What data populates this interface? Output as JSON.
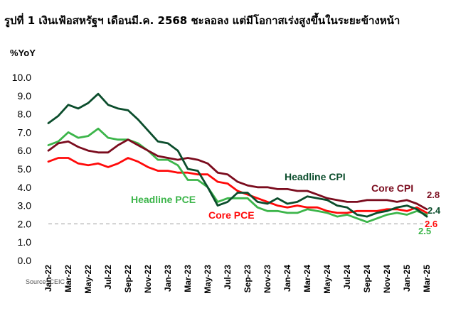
{
  "chart_data": {
    "type": "line",
    "title": "รูปที่ 1 เงินเฟ้อสหรัฐฯ เดือนมี.ค. 2568 ชะลอลง แต่มีโอกาสเร่งสูงขึ้นในระยะข้างหน้า",
    "ylabel": "%YoY",
    "source": "Source: CEIC",
    "ylim": [
      0,
      10
    ],
    "yticks": [
      "0.0",
      "1.0",
      "2.0",
      "3.0",
      "4.0",
      "5.0",
      "6.0",
      "7.0",
      "8.0",
      "9.0",
      "10.0"
    ],
    "reference_line": 2.0,
    "x": [
      "Jan-22",
      "Feb-22",
      "Mar-22",
      "Apr-22",
      "May-22",
      "Jun-22",
      "Jul-22",
      "Aug-22",
      "Sep-22",
      "Oct-22",
      "Nov-22",
      "Dec-22",
      "Jan-23",
      "Feb-23",
      "Mar-23",
      "Apr-23",
      "May-23",
      "Jun-23",
      "Jul-23",
      "Aug-23",
      "Sep-23",
      "Oct-23",
      "Nov-23",
      "Dec-23",
      "Jan-24",
      "Feb-24",
      "Mar-24",
      "Apr-24",
      "May-24",
      "Jun-24",
      "Jul-24",
      "Aug-24",
      "Sep-24",
      "Oct-24",
      "Nov-24",
      "Dec-24",
      "Jan-25",
      "Feb-25",
      "Mar-25"
    ],
    "xtick_labels": [
      "Jan-22",
      "Mar-22",
      "May-22",
      "Jul-22",
      "Sep-22",
      "Nov-22",
      "Jan-23",
      "Mar-23",
      "May-23",
      "Jul-23",
      "Sep-23",
      "Nov-23",
      "Jan-24",
      "Mar-24",
      "May-24",
      "Jul-24",
      "Sep-24",
      "Nov-24",
      "Jan-25",
      "Mar-25"
    ],
    "series": [
      {
        "name": "Headline CPI",
        "color": "#0b4d2c",
        "end_label": "2.4",
        "values": [
          7.5,
          7.9,
          8.5,
          8.3,
          8.6,
          9.1,
          8.5,
          8.3,
          8.2,
          7.7,
          7.1,
          6.5,
          6.4,
          6.0,
          5.0,
          4.9,
          4.0,
          3.0,
          3.2,
          3.7,
          3.7,
          3.2,
          3.1,
          3.4,
          3.1,
          3.2,
          3.5,
          3.4,
          3.3,
          3.0,
          2.9,
          2.5,
          2.4,
          2.6,
          2.7,
          2.9,
          3.0,
          2.8,
          2.4
        ]
      },
      {
        "name": "Core CPI",
        "color": "#7b0c1e",
        "end_label": "2.8",
        "values": [
          6.0,
          6.4,
          6.5,
          6.2,
          6.0,
          5.9,
          5.9,
          6.3,
          6.6,
          6.3,
          6.0,
          5.7,
          5.6,
          5.5,
          5.6,
          5.5,
          5.3,
          4.8,
          4.7,
          4.3,
          4.1,
          4.0,
          4.0,
          3.9,
          3.9,
          3.8,
          3.8,
          3.6,
          3.4,
          3.3,
          3.2,
          3.2,
          3.3,
          3.3,
          3.3,
          3.2,
          3.3,
          3.1,
          2.8
        ]
      },
      {
        "name": "Headline PCE",
        "color": "#3cb54a",
        "end_label": "2.5",
        "values": [
          6.3,
          6.5,
          7.0,
          6.7,
          6.8,
          7.2,
          6.7,
          6.6,
          6.6,
          6.4,
          6.0,
          5.5,
          5.5,
          5.2,
          4.4,
          4.4,
          4.0,
          3.2,
          3.4,
          3.4,
          3.4,
          2.9,
          2.7,
          2.7,
          2.6,
          2.6,
          2.8,
          2.7,
          2.6,
          2.4,
          2.5,
          2.3,
          2.1,
          2.3,
          2.5,
          2.6,
          2.5,
          2.7,
          2.5
        ]
      },
      {
        "name": "Core PCE",
        "color": "#ff0a0a",
        "end_label": "2.6",
        "values": [
          5.4,
          5.6,
          5.6,
          5.3,
          5.2,
          5.3,
          5.1,
          5.3,
          5.6,
          5.4,
          5.1,
          4.9,
          4.9,
          4.8,
          4.8,
          4.7,
          4.7,
          4.3,
          4.2,
          3.8,
          3.6,
          3.4,
          3.2,
          3.0,
          2.9,
          3.0,
          2.9,
          2.9,
          2.7,
          2.6,
          2.6,
          2.7,
          2.7,
          2.7,
          2.8,
          2.8,
          2.7,
          2.9,
          2.6
        ]
      }
    ]
  }
}
